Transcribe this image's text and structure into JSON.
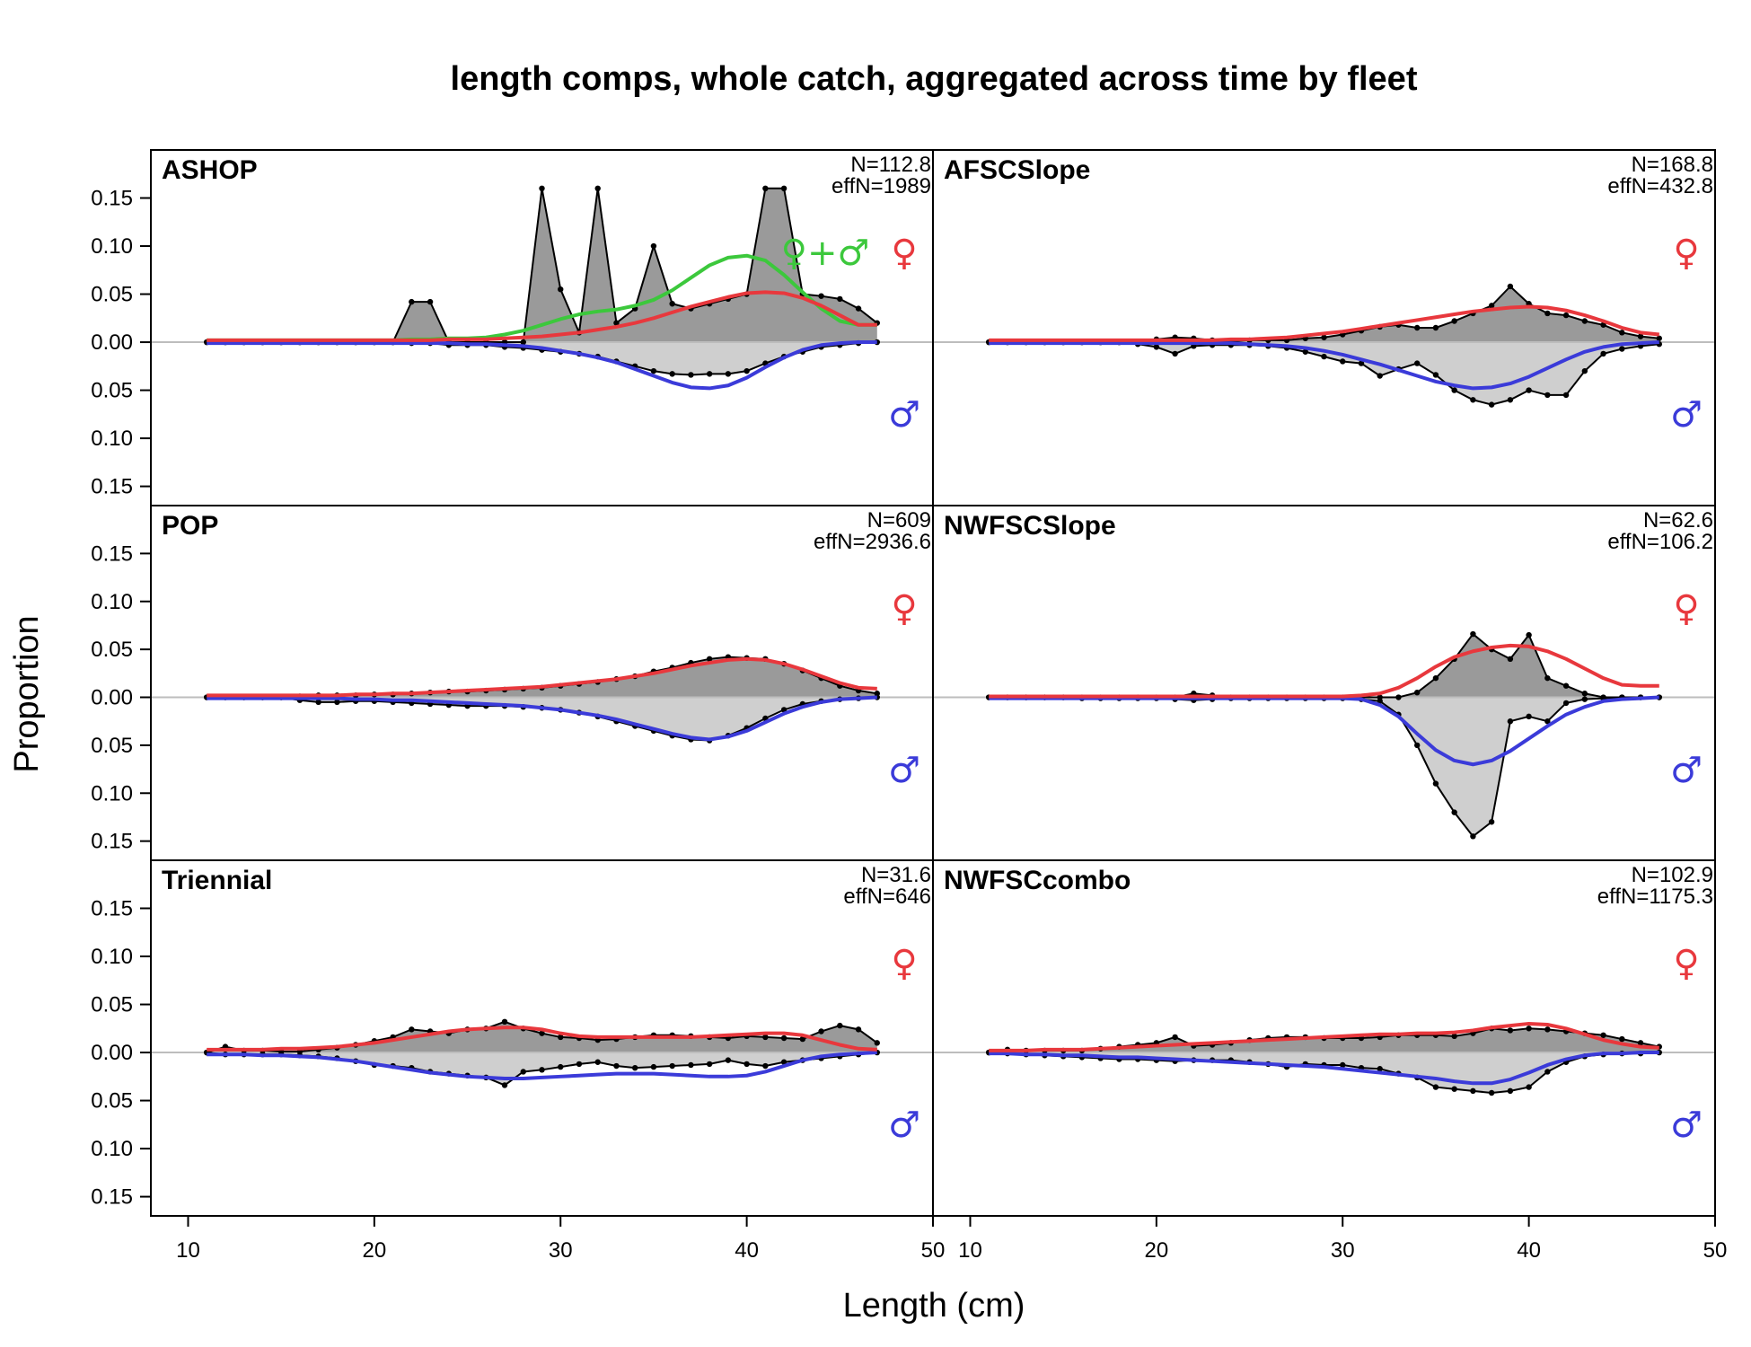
{
  "figure": {
    "title": "length comps, whole catch, aggregated across time by fleet",
    "xlabel": "Length (cm)",
    "ylabel": "Proportion"
  },
  "chart_data": {
    "type": "area",
    "title": "length comps, whole catch, aggregated across time by fleet",
    "xlabel": "Length (cm)",
    "ylabel": "Proportion",
    "xlim": [
      8,
      50
    ],
    "ylim": [
      -0.17,
      0.2
    ],
    "x_ticks": [
      10,
      20,
      30,
      40,
      50
    ],
    "y_ticks": [
      -0.15,
      -0.1,
      -0.05,
      0.0,
      0.05,
      0.1,
      0.15
    ],
    "y_tick_labels": [
      "0.15",
      "0.10",
      "0.05",
      "0.00",
      "0.05",
      "0.10",
      "0.15"
    ],
    "x_tick_labels": [
      "10",
      "20",
      "30",
      "40",
      "50"
    ],
    "colors": {
      "female_fit": "#e8383d",
      "male_fit": "#3b3bd9",
      "unsexed_fit": "#3cc83c",
      "female_fill": "#9a9a9a",
      "male_fill": "#cfcfcf",
      "zero_line": "#bdbdbd"
    },
    "symbols": {
      "female": "♀",
      "male": "♂",
      "unsexed_combo": "♀+♂"
    },
    "x": [
      11,
      12,
      13,
      14,
      15,
      16,
      17,
      18,
      19,
      20,
      21,
      22,
      23,
      24,
      25,
      26,
      27,
      28,
      29,
      30,
      31,
      32,
      33,
      34,
      35,
      36,
      37,
      38,
      39,
      40,
      41,
      42,
      43,
      44,
      45,
      46,
      47
    ],
    "panels": [
      {
        "fleet": "ASHOP",
        "n_label": "N=112.8",
        "effn_label": "effN=1989",
        "show_unsexed": true,
        "female_obs": [
          0,
          0,
          0,
          0,
          0,
          0,
          0,
          0,
          0,
          0,
          0,
          0.042,
          0.042,
          0,
          0,
          0,
          0,
          0,
          0.16,
          0.055,
          0.01,
          0.16,
          0.02,
          0.035,
          0.1,
          0.04,
          0.035,
          0.04,
          0.045,
          0.05,
          0.16,
          0.16,
          0.05,
          0.048,
          0.045,
          0.035,
          0.02
        ],
        "male_obs": [
          0,
          0,
          0,
          0,
          0,
          0,
          0,
          0,
          0,
          0,
          0,
          -0.001,
          -0.001,
          -0.003,
          -0.003,
          -0.003,
          -0.005,
          -0.006,
          -0.008,
          -0.01,
          -0.012,
          -0.015,
          -0.02,
          -0.025,
          -0.03,
          -0.033,
          -0.034,
          -0.033,
          -0.033,
          -0.03,
          -0.022,
          -0.015,
          -0.01,
          -0.005,
          -0.003,
          -0.001,
          0
        ],
        "female_fit": [
          0.002,
          0.002,
          0.002,
          0.002,
          0.002,
          0.002,
          0.002,
          0.002,
          0.002,
          0.002,
          0.002,
          0.002,
          0.002,
          0.003,
          0.003,
          0.003,
          0.004,
          0.005,
          0.006,
          0.008,
          0.01,
          0.013,
          0.016,
          0.02,
          0.025,
          0.031,
          0.037,
          0.042,
          0.047,
          0.051,
          0.052,
          0.051,
          0.046,
          0.038,
          0.028,
          0.018,
          0.018
        ],
        "male_fit": [
          -0.001,
          -0.001,
          -0.001,
          -0.001,
          -0.001,
          -0.001,
          -0.001,
          -0.001,
          -0.001,
          -0.001,
          -0.001,
          -0.001,
          -0.001,
          -0.001,
          -0.002,
          -0.002,
          -0.003,
          -0.004,
          -0.006,
          -0.009,
          -0.012,
          -0.016,
          -0.021,
          -0.028,
          -0.035,
          -0.042,
          -0.047,
          -0.048,
          -0.045,
          -0.037,
          -0.026,
          -0.016,
          -0.008,
          -0.003,
          -0.001,
          0,
          0
        ],
        "unsexed_fit": [
          0.002,
          0.002,
          0.002,
          0.002,
          0.002,
          0.002,
          0.002,
          0.002,
          0.002,
          0.002,
          0.002,
          0.003,
          0.003,
          0.004,
          0.004,
          0.005,
          0.008,
          0.012,
          0.018,
          0.024,
          0.029,
          0.032,
          0.034,
          0.038,
          0.044,
          0.054,
          0.067,
          0.08,
          0.088,
          0.09,
          0.085,
          0.07,
          0.052,
          0.035,
          0.022,
          0.018,
          0.018
        ]
      },
      {
        "fleet": "AFSCSlope",
        "n_label": "N=168.8",
        "effn_label": "effN=432.8",
        "show_unsexed": false,
        "female_obs": [
          0,
          0,
          0,
          0,
          0,
          0,
          0,
          0,
          0,
          0.003,
          0.005,
          0.004,
          0.002,
          0.001,
          0.002,
          0.002,
          0.002,
          0.004,
          0.005,
          0.008,
          0.012,
          0.016,
          0.018,
          0.015,
          0.015,
          0.022,
          0.03,
          0.038,
          0.058,
          0.04,
          0.03,
          0.028,
          0.022,
          0.018,
          0.01,
          0.006,
          0.004
        ],
        "male_obs": [
          0,
          0,
          0,
          0,
          0,
          0,
          0,
          0,
          -0.002,
          -0.005,
          -0.012,
          -0.004,
          -0.003,
          -0.003,
          -0.003,
          -0.004,
          -0.006,
          -0.01,
          -0.015,
          -0.02,
          -0.022,
          -0.035,
          -0.028,
          -0.022,
          -0.034,
          -0.05,
          -0.06,
          -0.065,
          -0.06,
          -0.05,
          -0.055,
          -0.055,
          -0.03,
          -0.012,
          -0.007,
          -0.004,
          -0.002
        ],
        "female_fit": [
          0.002,
          0.002,
          0.002,
          0.002,
          0.002,
          0.002,
          0.002,
          0.002,
          0.002,
          0.002,
          0.002,
          0.002,
          0.002,
          0.003,
          0.003,
          0.004,
          0.005,
          0.007,
          0.009,
          0.011,
          0.014,
          0.017,
          0.02,
          0.023,
          0.026,
          0.029,
          0.032,
          0.034,
          0.036,
          0.037,
          0.036,
          0.033,
          0.028,
          0.022,
          0.015,
          0.01,
          0.008
        ],
        "male_fit": [
          -0.001,
          -0.001,
          -0.001,
          -0.001,
          -0.001,
          -0.001,
          -0.001,
          -0.001,
          -0.001,
          -0.001,
          -0.001,
          -0.001,
          -0.001,
          -0.001,
          -0.002,
          -0.003,
          -0.004,
          -0.006,
          -0.009,
          -0.013,
          -0.018,
          -0.023,
          -0.029,
          -0.035,
          -0.041,
          -0.045,
          -0.048,
          -0.047,
          -0.043,
          -0.036,
          -0.027,
          -0.018,
          -0.01,
          -0.005,
          -0.002,
          -0.001,
          0
        ],
        "unsexed_fit": []
      },
      {
        "fleet": "POP",
        "n_label": "N=609",
        "effn_label": "effN=2936.6",
        "show_unsexed": false,
        "female_obs": [
          0,
          0,
          0,
          0,
          0,
          0.001,
          0.002,
          0.002,
          0.002,
          0.003,
          0.003,
          0.004,
          0.005,
          0.006,
          0.006,
          0.007,
          0.008,
          0.009,
          0.01,
          0.012,
          0.014,
          0.016,
          0.019,
          0.022,
          0.027,
          0.031,
          0.036,
          0.04,
          0.042,
          0.041,
          0.04,
          0.035,
          0.028,
          0.02,
          0.012,
          0.007,
          0.004
        ],
        "male_obs": [
          0,
          0,
          0,
          0,
          0,
          -0.003,
          -0.005,
          -0.005,
          -0.004,
          -0.004,
          -0.005,
          -0.006,
          -0.007,
          -0.008,
          -0.009,
          -0.009,
          -0.009,
          -0.01,
          -0.011,
          -0.013,
          -0.016,
          -0.02,
          -0.025,
          -0.03,
          -0.035,
          -0.04,
          -0.044,
          -0.045,
          -0.04,
          -0.032,
          -0.022,
          -0.013,
          -0.007,
          -0.004,
          -0.002,
          -0.001,
          0
        ],
        "female_fit": [
          0.002,
          0.002,
          0.002,
          0.002,
          0.002,
          0.002,
          0.002,
          0.002,
          0.003,
          0.003,
          0.004,
          0.004,
          0.005,
          0.006,
          0.007,
          0.008,
          0.009,
          0.01,
          0.011,
          0.013,
          0.015,
          0.017,
          0.019,
          0.022,
          0.025,
          0.029,
          0.033,
          0.036,
          0.039,
          0.04,
          0.039,
          0.035,
          0.029,
          0.022,
          0.015,
          0.01,
          0.009
        ],
        "male_fit": [
          -0.001,
          -0.001,
          -0.001,
          -0.001,
          -0.001,
          -0.001,
          -0.001,
          -0.001,
          -0.002,
          -0.002,
          -0.003,
          -0.003,
          -0.004,
          -0.005,
          -0.006,
          -0.007,
          -0.008,
          -0.009,
          -0.011,
          -0.013,
          -0.016,
          -0.019,
          -0.023,
          -0.028,
          -0.033,
          -0.038,
          -0.042,
          -0.044,
          -0.041,
          -0.035,
          -0.026,
          -0.017,
          -0.01,
          -0.005,
          -0.002,
          -0.001,
          0
        ],
        "unsexed_fit": []
      },
      {
        "fleet": "NWFSCSlope",
        "n_label": "N=62.6",
        "effn_label": "effN=106.2",
        "show_unsexed": false,
        "female_obs": [
          0,
          0,
          0,
          0,
          0,
          0,
          0,
          0,
          0,
          0,
          0,
          0.004,
          0.002,
          0,
          0,
          0,
          0,
          0,
          0,
          0,
          0,
          0,
          0,
          0.005,
          0.02,
          0.04,
          0.066,
          0.05,
          0.04,
          0.065,
          0.02,
          0.012,
          0.004,
          0,
          0,
          0,
          0
        ],
        "male_obs": [
          0,
          0,
          0,
          0,
          0,
          -0.001,
          -0.001,
          -0.001,
          -0.001,
          -0.001,
          -0.002,
          -0.003,
          -0.002,
          -0.001,
          -0.001,
          -0.001,
          -0.001,
          -0.001,
          -0.001,
          -0.001,
          -0.002,
          -0.004,
          -0.018,
          -0.05,
          -0.09,
          -0.12,
          -0.145,
          -0.13,
          -0.025,
          -0.02,
          -0.025,
          -0.006,
          -0.002,
          -0.001,
          0,
          0,
          0
        ],
        "female_fit": [
          0.001,
          0.001,
          0.001,
          0.001,
          0.001,
          0.001,
          0.001,
          0.001,
          0.001,
          0.001,
          0.001,
          0.001,
          0.001,
          0.001,
          0.001,
          0.001,
          0.001,
          0.001,
          0.001,
          0.001,
          0.002,
          0.004,
          0.01,
          0.02,
          0.032,
          0.042,
          0.048,
          0.052,
          0.054,
          0.053,
          0.048,
          0.04,
          0.03,
          0.02,
          0.013,
          0.012,
          0.012
        ],
        "male_fit": [
          -0.001,
          -0.001,
          -0.001,
          -0.001,
          -0.001,
          -0.001,
          -0.001,
          -0.001,
          -0.001,
          -0.001,
          -0.001,
          -0.001,
          -0.001,
          -0.001,
          -0.001,
          -0.001,
          -0.001,
          -0.001,
          -0.001,
          -0.001,
          -0.002,
          -0.008,
          -0.02,
          -0.038,
          -0.055,
          -0.066,
          -0.07,
          -0.066,
          -0.056,
          -0.043,
          -0.03,
          -0.018,
          -0.01,
          -0.004,
          -0.002,
          -0.001,
          0
        ],
        "unsexed_fit": []
      },
      {
        "fleet": "Triennial",
        "n_label": "N=31.6",
        "effn_label": "effN=646",
        "show_unsexed": false,
        "female_obs": [
          0,
          0.006,
          0.002,
          0.002,
          0.001,
          0.001,
          0.003,
          0.005,
          0.008,
          0.012,
          0.016,
          0.024,
          0.022,
          0.02,
          0.024,
          0.025,
          0.032,
          0.025,
          0.02,
          0.016,
          0.015,
          0.013,
          0.014,
          0.016,
          0.018,
          0.018,
          0.017,
          0.016,
          0.015,
          0.017,
          0.016,
          0.015,
          0.014,
          0.022,
          0.028,
          0.024,
          0.01
        ],
        "male_obs": [
          0,
          -0.002,
          -0.002,
          -0.002,
          -0.002,
          -0.003,
          -0.004,
          -0.006,
          -0.009,
          -0.013,
          -0.014,
          -0.016,
          -0.02,
          -0.022,
          -0.024,
          -0.026,
          -0.034,
          -0.02,
          -0.018,
          -0.015,
          -0.012,
          -0.01,
          -0.014,
          -0.016,
          -0.015,
          -0.014,
          -0.013,
          -0.012,
          -0.008,
          -0.012,
          -0.014,
          -0.01,
          -0.008,
          -0.006,
          -0.004,
          -0.002,
          0
        ],
        "female_fit": [
          0.003,
          0.003,
          0.003,
          0.003,
          0.004,
          0.004,
          0.005,
          0.006,
          0.008,
          0.01,
          0.013,
          0.016,
          0.019,
          0.022,
          0.024,
          0.025,
          0.026,
          0.026,
          0.024,
          0.02,
          0.017,
          0.016,
          0.016,
          0.016,
          0.016,
          0.016,
          0.016,
          0.017,
          0.018,
          0.019,
          0.02,
          0.02,
          0.018,
          0.013,
          0.008,
          0.004,
          0.003
        ],
        "male_fit": [
          -0.002,
          -0.002,
          -0.002,
          -0.003,
          -0.003,
          -0.004,
          -0.005,
          -0.007,
          -0.009,
          -0.012,
          -0.015,
          -0.018,
          -0.021,
          -0.023,
          -0.025,
          -0.026,
          -0.027,
          -0.027,
          -0.026,
          -0.025,
          -0.024,
          -0.023,
          -0.022,
          -0.022,
          -0.022,
          -0.023,
          -0.024,
          -0.025,
          -0.025,
          -0.024,
          -0.02,
          -0.014,
          -0.008,
          -0.004,
          -0.002,
          -0.001,
          0
        ],
        "unsexed_fit": []
      },
      {
        "fleet": "NWFSCcombo",
        "n_label": "N=102.9",
        "effn_label": "effN=1175.3",
        "show_unsexed": false,
        "female_obs": [
          0,
          0.003,
          0.002,
          0.002,
          0.002,
          0.002,
          0.004,
          0.006,
          0.008,
          0.01,
          0.016,
          0.007,
          0.008,
          0.01,
          0.013,
          0.015,
          0.016,
          0.016,
          0.015,
          0.015,
          0.015,
          0.016,
          0.018,
          0.018,
          0.018,
          0.017,
          0.02,
          0.025,
          0.023,
          0.025,
          0.024,
          0.022,
          0.02,
          0.018,
          0.014,
          0.01,
          0.006
        ],
        "male_obs": [
          0,
          -0.001,
          -0.002,
          -0.003,
          -0.004,
          -0.005,
          -0.006,
          -0.007,
          -0.007,
          -0.008,
          -0.009,
          -0.008,
          -0.008,
          -0.008,
          -0.01,
          -0.012,
          -0.015,
          -0.012,
          -0.013,
          -0.013,
          -0.016,
          -0.017,
          -0.022,
          -0.026,
          -0.036,
          -0.038,
          -0.04,
          -0.042,
          -0.04,
          -0.036,
          -0.02,
          -0.01,
          -0.004,
          -0.002,
          -0.001,
          -0.001,
          0
        ],
        "female_fit": [
          0.002,
          0.002,
          0.002,
          0.003,
          0.003,
          0.003,
          0.004,
          0.005,
          0.006,
          0.007,
          0.008,
          0.009,
          0.01,
          0.011,
          0.012,
          0.013,
          0.014,
          0.015,
          0.016,
          0.017,
          0.018,
          0.019,
          0.019,
          0.02,
          0.02,
          0.021,
          0.023,
          0.026,
          0.028,
          0.03,
          0.029,
          0.025,
          0.019,
          0.013,
          0.009,
          0.006,
          0.005
        ],
        "male_fit": [
          -0.001,
          -0.001,
          -0.002,
          -0.002,
          -0.003,
          -0.003,
          -0.004,
          -0.005,
          -0.005,
          -0.006,
          -0.007,
          -0.008,
          -0.009,
          -0.01,
          -0.011,
          -0.012,
          -0.013,
          -0.014,
          -0.015,
          -0.017,
          -0.019,
          -0.021,
          -0.023,
          -0.025,
          -0.027,
          -0.03,
          -0.032,
          -0.032,
          -0.028,
          -0.021,
          -0.013,
          -0.007,
          -0.003,
          -0.001,
          -0.001,
          0,
          0
        ],
        "unsexed_fit": []
      }
    ]
  }
}
